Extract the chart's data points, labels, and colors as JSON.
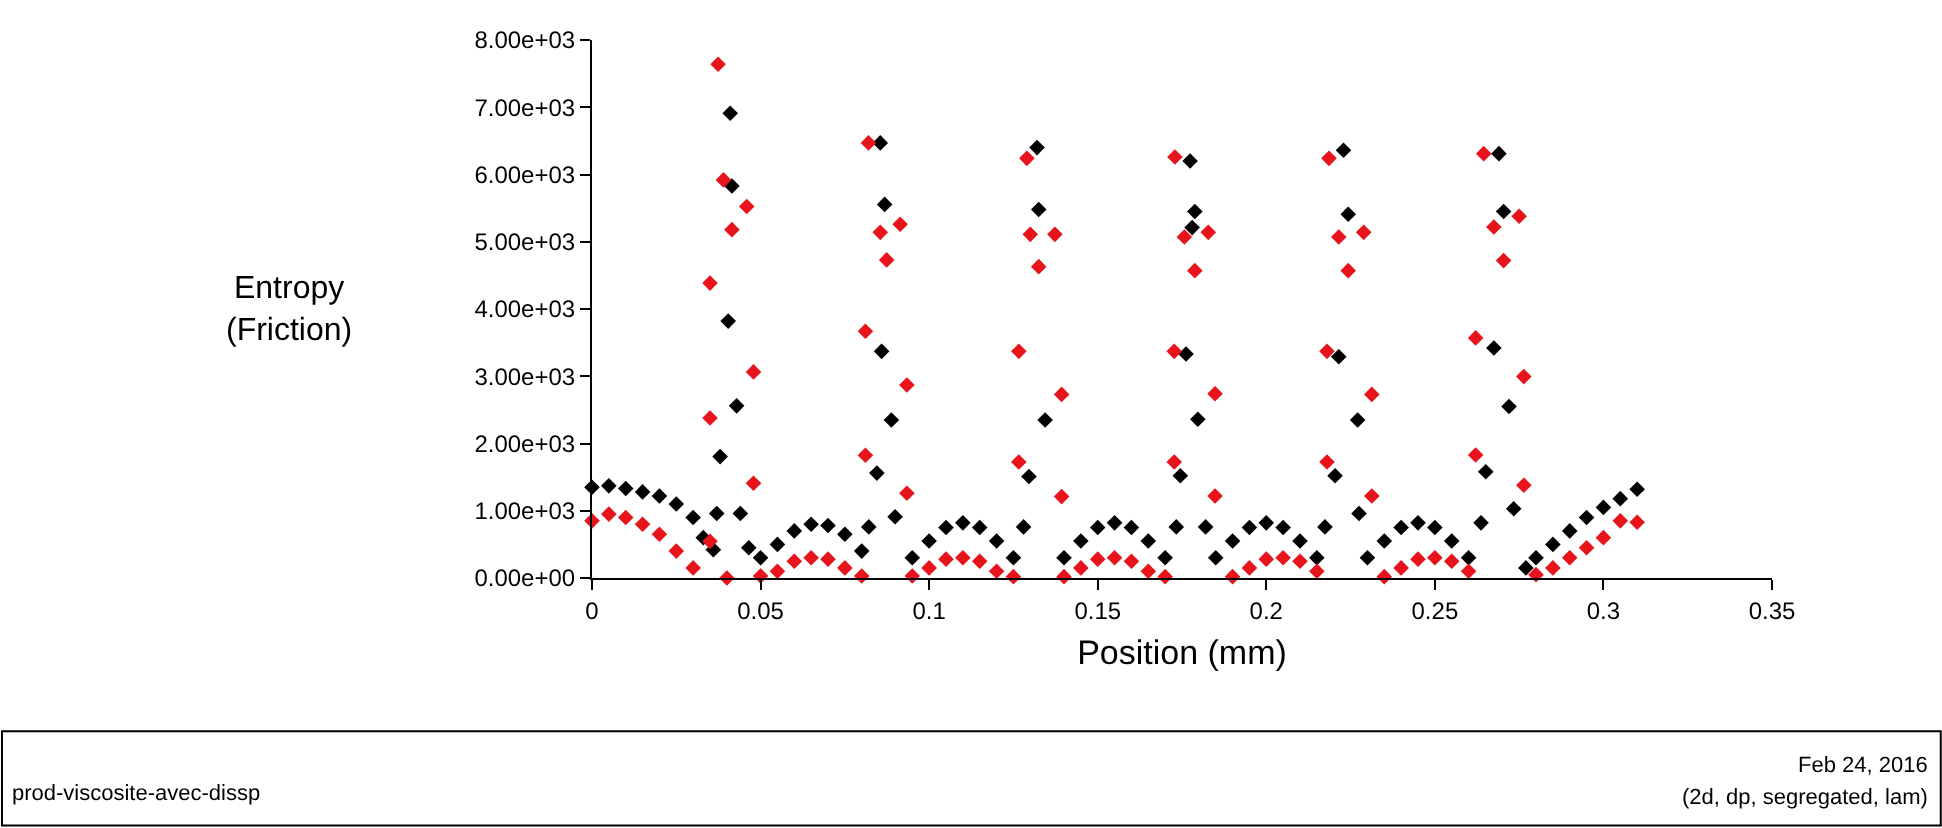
{
  "chart_data": {
    "type": "scatter",
    "xlabel": "Position (mm)",
    "ylabel": "Entropy\n(Friction)",
    "xlim": [
      0,
      0.35
    ],
    "xticks": [
      0,
      0.05,
      0.1,
      0.15,
      0.2,
      0.25,
      0.3,
      0.35
    ],
    "ylim": [
      0,
      8000
    ],
    "yticks": [
      {
        "value": 0,
        "label": "0.00e+00"
      },
      {
        "value": 1000,
        "label": "1.00e+03"
      },
      {
        "value": 2000,
        "label": "2.00e+03"
      },
      {
        "value": 3000,
        "label": "3.00e+03"
      },
      {
        "value": 4000,
        "label": "4.00e+03"
      },
      {
        "value": 5000,
        "label": "5.00e+03"
      },
      {
        "value": 6000,
        "label": "6.00e+03"
      },
      {
        "value": 7000,
        "label": "7.00e+03"
      },
      {
        "value": 8000,
        "label": "8.00e+03"
      }
    ],
    "marker": "diamond",
    "annotations": [
      "prod-viscosite-avec-dissp",
      "Feb 24, 2016",
      "(2d, dp, segregated, lam)"
    ],
    "series": [
      {
        "color": "#000000",
        "x": [
          0,
          0.005,
          0.01,
          0.015,
          0.02,
          0.025,
          0.03,
          0.033,
          0.036,
          0.037,
          0.038,
          0.0404,
          0.041,
          0.0415,
          0.0429,
          0.044,
          0.0465,
          0.05,
          0.055,
          0.06,
          0.065,
          0.07,
          0.075,
          0.08,
          0.0821,
          0.0845,
          0.0855,
          0.0859,
          0.0868,
          0.0888,
          0.0899,
          0.095,
          0.1,
          0.105,
          0.11,
          0.115,
          0.12,
          0.125,
          0.128,
          0.1296,
          0.1325,
          0.132,
          0.1344,
          0.14,
          0.145,
          0.15,
          0.155,
          0.16,
          0.165,
          0.17,
          0.1733,
          0.1745,
          0.1762,
          0.1774,
          0.178,
          0.1788,
          0.1797,
          0.182,
          0.185,
          0.19,
          0.195,
          0.2,
          0.205,
          0.21,
          0.215,
          0.2174,
          0.2204,
          0.2215,
          0.2229,
          0.2243,
          0.2271,
          0.2275,
          0.23,
          0.235,
          0.24,
          0.245,
          0.25,
          0.255,
          0.26,
          0.2637,
          0.2651,
          0.2675,
          0.269,
          0.2704,
          0.272,
          0.2734,
          0.277,
          0.28,
          0.285,
          0.29,
          0.295,
          0.3,
          0.305,
          0.31
        ],
        "values": [
          1350,
          1370,
          1330,
          1280,
          1220,
          1100,
          900,
          600,
          420,
          960,
          1805,
          3820,
          6910,
          5830,
          2560,
          960,
          450,
          300,
          500,
          700,
          800,
          780,
          650,
          400,
          760,
          1560,
          6470,
          3370,
          5555,
          2350,
          910,
          300,
          550,
          750,
          820,
          750,
          550,
          300,
          760,
          1510,
          5480,
          6400,
          2350,
          300,
          550,
          750,
          820,
          750,
          550,
          300,
          760,
          1520,
          3330,
          6200,
          5210,
          5450,
          2360,
          760,
          300,
          550,
          750,
          820,
          750,
          550,
          300,
          760,
          1520,
          3290,
          6360,
          5410,
          2350,
          960,
          300,
          550,
          750,
          820,
          750,
          550,
          300,
          820,
          1580,
          3420,
          6310,
          5450,
          2550,
          1030,
          150,
          300,
          500,
          700,
          900,
          1050,
          1180,
          1320
        ]
      },
      {
        "color": "#e8141c",
        "x": [
          0,
          0.005,
          0.01,
          0.015,
          0.02,
          0.025,
          0.03,
          0.035,
          0.035,
          0.035,
          0.0374,
          0.039,
          0.04,
          0.0415,
          0.0459,
          0.0479,
          0.0479,
          0.05,
          0.055,
          0.06,
          0.065,
          0.07,
          0.075,
          0.08,
          0.0811,
          0.0811,
          0.082,
          0.0855,
          0.0874,
          0.0914,
          0.0934,
          0.0934,
          0.095,
          0.1,
          0.105,
          0.11,
          0.115,
          0.12,
          0.125,
          0.1266,
          0.1266,
          0.129,
          0.13,
          0.1325,
          0.1373,
          0.1393,
          0.1393,
          0.14,
          0.145,
          0.15,
          0.155,
          0.16,
          0.165,
          0.17,
          0.1727,
          0.1727,
          0.1729,
          0.1757,
          0.1788,
          0.1828,
          0.1848,
          0.1848,
          0.19,
          0.195,
          0.2,
          0.205,
          0.21,
          0.215,
          0.218,
          0.218,
          0.2186,
          0.2215,
          0.2243,
          0.2289,
          0.2313,
          0.2313,
          0.235,
          0.24,
          0.245,
          0.25,
          0.255,
          0.26,
          0.2621,
          0.2621,
          0.2645,
          0.2675,
          0.2704,
          0.275,
          0.2764,
          0.2764,
          0.28,
          0.285,
          0.29,
          0.295,
          0.3,
          0.305,
          0.31
        ],
        "values": [
          850,
          950,
          900,
          800,
          650,
          400,
          150,
          545,
          2380,
          4385,
          7640,
          5920,
          0,
          5180,
          5525,
          3065,
          1410,
          30,
          100,
          250,
          300,
          280,
          150,
          30,
          1825,
          3670,
          6470,
          5140,
          4730,
          5260,
          2870,
          1260,
          30,
          150,
          280,
          300,
          250,
          100,
          20,
          1725,
          3370,
          6240,
          5110,
          4630,
          5110,
          2730,
          1210,
          20,
          150,
          280,
          300,
          250,
          100,
          20,
          1725,
          3370,
          6260,
          5070,
          4570,
          5140,
          2740,
          1220,
          20,
          150,
          280,
          300,
          250,
          100,
          1725,
          3370,
          6240,
          5070,
          4570,
          5140,
          2730,
          1220,
          20,
          150,
          280,
          300,
          250,
          100,
          1830,
          3570,
          6310,
          5220,
          4720,
          5380,
          2995,
          1380,
          50,
          150,
          300,
          450,
          600,
          850,
          830
        ]
      }
    ]
  }
}
